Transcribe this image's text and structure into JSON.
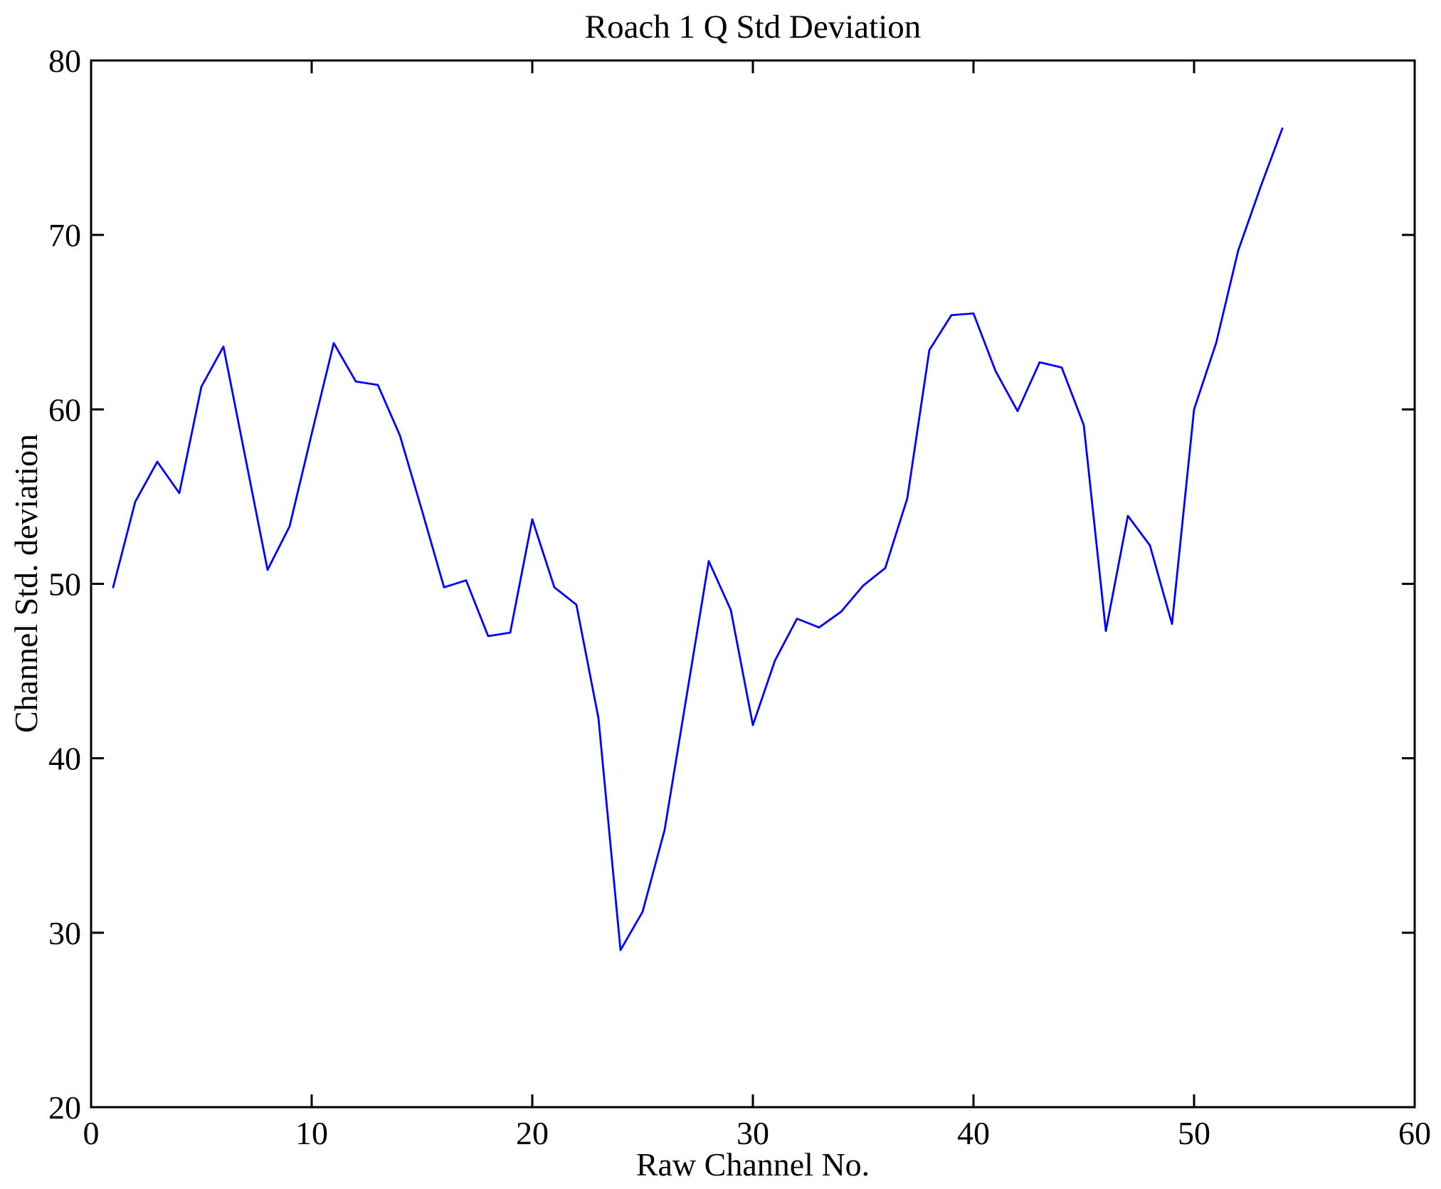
{
  "chart_data": {
    "type": "line",
    "title": "Roach 1 Q Std Deviation",
    "xlabel": "Raw Channel No.",
    "ylabel": "Channel Std. deviation",
    "xlim": [
      0,
      60
    ],
    "ylim": [
      20,
      80
    ],
    "xticks": [
      0,
      10,
      20,
      30,
      40,
      50,
      60
    ],
    "yticks": [
      20,
      30,
      40,
      50,
      60,
      70,
      80
    ],
    "grid": false,
    "legend": null,
    "line_color": "#0000ff",
    "axis_color": "#000000",
    "background_color": "#ffffff",
    "x": [
      1,
      2,
      3,
      4,
      5,
      6,
      7,
      8,
      9,
      10,
      11,
      12,
      13,
      14,
      15,
      16,
      17,
      18,
      19,
      20,
      21,
      22,
      23,
      24,
      25,
      26,
      27,
      28,
      29,
      30,
      31,
      32,
      33,
      34,
      35,
      36,
      37,
      38,
      39,
      40,
      41,
      42,
      43,
      44,
      45,
      46,
      47,
      48,
      49,
      50,
      51,
      52,
      53,
      54
    ],
    "values": [
      49.8,
      54.7,
      57.0,
      55.2,
      61.3,
      63.6,
      57.2,
      50.8,
      53.3,
      58.6,
      63.8,
      61.6,
      61.4,
      58.5,
      54.2,
      49.8,
      50.2,
      47.0,
      47.2,
      53.7,
      49.8,
      48.8,
      42.3,
      29.0,
      31.2,
      35.9,
      43.6,
      51.3,
      48.5,
      41.9,
      45.6,
      48.0,
      47.5,
      48.4,
      49.9,
      50.9,
      54.9,
      63.4,
      65.4,
      65.5,
      62.2,
      59.9,
      62.7,
      62.4,
      59.1,
      47.3,
      53.9,
      52.2,
      47.7,
      60.0,
      63.8,
      69.1,
      72.7,
      76.1
    ]
  }
}
